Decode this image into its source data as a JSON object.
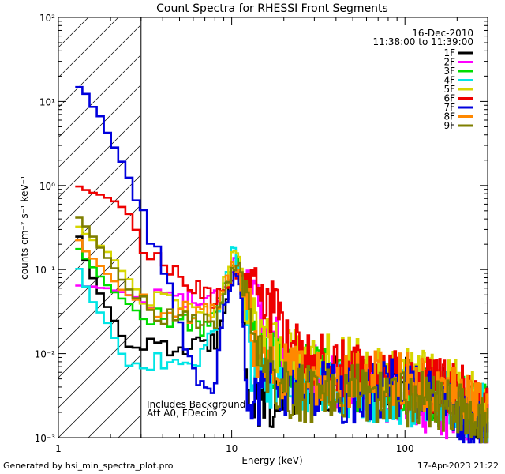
{
  "chart_data": {
    "type": "line",
    "title": "Count Spectra for RHESSI Front Segments",
    "xlabel": "Energy (keV)",
    "ylabel": "counts cm⁻² s⁻¹ keV⁻¹",
    "xscale": "log",
    "yscale": "log",
    "xlim": [
      1,
      300
    ],
    "ylim": [
      0.001,
      100
    ],
    "x_ticks": [
      1,
      10,
      100
    ],
    "x_tick_labels": [
      "1",
      "10",
      "100"
    ],
    "y_ticks": [
      0.001,
      0.01,
      0.1,
      1,
      10,
      100
    ],
    "y_tick_labels": [
      "10⁻³",
      "10⁻²",
      "10⁻¹",
      "10⁰",
      "10¹",
      "10²"
    ],
    "attenuator_cutoff_keV": 3,
    "date": "16-Dec-2010",
    "time_range": "11:38:00 to 11:39:00",
    "annotation": [
      "Includes Background",
      "Att A0, FDecim 2"
    ],
    "legend_position": "top-right",
    "series": [
      {
        "name": "1F",
        "color": "#000000"
      },
      {
        "name": "2F",
        "color": "#ff00ff"
      },
      {
        "name": "3F",
        "color": "#00dd00"
      },
      {
        "name": "4F",
        "color": "#00e5e5"
      },
      {
        "name": "5F",
        "color": "#d6d600"
      },
      {
        "name": "6F",
        "color": "#ee0000"
      },
      {
        "name": "7F",
        "color": "#0000dd"
      },
      {
        "name": "8F",
        "color": "#ff8800"
      },
      {
        "name": "9F",
        "color": "#7f7f00"
      }
    ],
    "anchors": {
      "1F": [
        [
          1.25,
          0.34
        ],
        [
          1.5,
          0.1
        ],
        [
          2,
          0.03
        ],
        [
          2.5,
          0.012
        ],
        [
          3,
          0.012
        ],
        [
          4,
          0.011
        ],
        [
          6,
          0.012
        ],
        [
          8,
          0.014
        ],
        [
          9.5,
          0.06
        ],
        [
          10.5,
          0.11
        ],
        [
          11.5,
          0.05
        ],
        [
          12.5,
          0.003
        ],
        [
          15,
          0.002
        ],
        [
          20,
          0.004
        ],
        [
          30,
          0.004
        ],
        [
          50,
          0.005
        ],
        [
          80,
          0.004
        ],
        [
          120,
          0.004
        ],
        [
          200,
          0.003
        ],
        [
          290,
          0.0015
        ]
      ],
      "2F": [
        [
          1.25,
          0.065
        ],
        [
          2,
          0.06
        ],
        [
          2.5,
          0.05
        ],
        [
          3,
          0.045
        ],
        [
          5,
          0.05
        ],
        [
          7,
          0.04
        ],
        [
          9,
          0.06
        ],
        [
          10.5,
          0.13
        ],
        [
          12,
          0.06
        ],
        [
          14,
          0.03
        ],
        [
          20,
          0.01
        ],
        [
          30,
          0.006
        ],
        [
          60,
          0.004
        ],
        [
          100,
          0.003
        ],
        [
          200,
          0.002
        ],
        [
          290,
          0.0015
        ]
      ],
      "3F": [
        [
          1.25,
          0.2
        ],
        [
          1.5,
          0.12
        ],
        [
          2,
          0.06
        ],
        [
          2.5,
          0.04
        ],
        [
          3,
          0.03
        ],
        [
          5,
          0.025
        ],
        [
          7,
          0.02
        ],
        [
          9,
          0.05
        ],
        [
          10.5,
          0.15
        ],
        [
          12,
          0.05
        ],
        [
          14,
          0.01
        ],
        [
          20,
          0.007
        ],
        [
          40,
          0.005
        ],
        [
          80,
          0.004
        ],
        [
          150,
          0.003
        ],
        [
          290,
          0.002
        ]
      ],
      "4F": [
        [
          1.25,
          0.13
        ],
        [
          1.5,
          0.05
        ],
        [
          2,
          0.02
        ],
        [
          2.5,
          0.007
        ],
        [
          3,
          0.008
        ],
        [
          4,
          0.008
        ],
        [
          5.5,
          0.007
        ],
        [
          7,
          0.01
        ],
        [
          9,
          0.05
        ],
        [
          10.3,
          0.2
        ],
        [
          11.5,
          0.06
        ],
        [
          13,
          0.006
        ],
        [
          20,
          0.004
        ],
        [
          40,
          0.004
        ],
        [
          80,
          0.003
        ],
        [
          150,
          0.003
        ],
        [
          290,
          0.002
        ]
      ],
      "5F": [
        [
          1.25,
          0.35
        ],
        [
          1.5,
          0.25
        ],
        [
          2,
          0.15
        ],
        [
          2.5,
          0.08
        ],
        [
          3,
          0.05
        ],
        [
          4,
          0.04
        ],
        [
          6,
          0.03
        ],
        [
          8,
          0.03
        ],
        [
          10,
          0.12
        ],
        [
          11,
          0.15
        ],
        [
          12,
          0.05
        ],
        [
          14,
          0.015
        ],
        [
          20,
          0.01
        ],
        [
          30,
          0.008
        ],
        [
          50,
          0.007
        ],
        [
          80,
          0.006
        ],
        [
          120,
          0.005
        ],
        [
          200,
          0.004
        ],
        [
          290,
          0.002
        ]
      ],
      "6F": [
        [
          1.25,
          1
        ],
        [
          1.5,
          0.85
        ],
        [
          2,
          0.7
        ],
        [
          2.5,
          0.5
        ],
        [
          3,
          0.22
        ],
        [
          4,
          0.1
        ],
        [
          5,
          0.08
        ],
        [
          6,
          0.06
        ],
        [
          7,
          0.05
        ],
        [
          8,
          0.04
        ],
        [
          9,
          0.06
        ],
        [
          10.5,
          0.1
        ],
        [
          12,
          0.08
        ],
        [
          14,
          0.06
        ],
        [
          16,
          0.04
        ],
        [
          18,
          0.04
        ],
        [
          20,
          0.012
        ],
        [
          30,
          0.008
        ],
        [
          50,
          0.006
        ],
        [
          90,
          0.005
        ],
        [
          150,
          0.004
        ],
        [
          250,
          0.003
        ],
        [
          290,
          0.002
        ]
      ],
      "7F": [
        [
          1.25,
          15
        ],
        [
          1.4,
          14
        ],
        [
          1.5,
          10
        ],
        [
          1.8,
          6
        ],
        [
          2,
          3.5
        ],
        [
          2.5,
          1.4
        ],
        [
          3,
          0.45
        ],
        [
          3.5,
          0.2
        ],
        [
          4,
          0.1
        ],
        [
          5,
          0.025
        ],
        [
          6,
          0.006
        ],
        [
          7,
          0.003
        ],
        [
          8,
          0.005
        ],
        [
          9,
          0.03
        ],
        [
          10.5,
          0.09
        ],
        [
          11.5,
          0.05
        ],
        [
          12,
          0.005
        ],
        [
          14,
          0.003
        ],
        [
          20,
          0.004
        ],
        [
          30,
          0.004
        ],
        [
          50,
          0.003
        ],
        [
          80,
          0.004
        ],
        [
          130,
          0.003
        ],
        [
          200,
          0.002
        ],
        [
          290,
          0.0015
        ]
      ],
      "8F": [
        [
          1.25,
          0.25
        ],
        [
          1.5,
          0.15
        ],
        [
          2,
          0.08
        ],
        [
          2.5,
          0.05
        ],
        [
          3,
          0.04
        ],
        [
          4,
          0.035
        ],
        [
          6,
          0.03
        ],
        [
          8,
          0.03
        ],
        [
          10.5,
          0.14
        ],
        [
          12,
          0.05
        ],
        [
          14,
          0.01
        ],
        [
          20,
          0.006
        ],
        [
          40,
          0.005
        ],
        [
          80,
          0.005
        ],
        [
          150,
          0.004
        ],
        [
          290,
          0.002
        ]
      ],
      "9F": [
        [
          1.25,
          0.45
        ],
        [
          1.5,
          0.3
        ],
        [
          2,
          0.12
        ],
        [
          2.5,
          0.06
        ],
        [
          3,
          0.04
        ],
        [
          4,
          0.03
        ],
        [
          6,
          0.025
        ],
        [
          8,
          0.02
        ],
        [
          10,
          0.08
        ],
        [
          11,
          0.12
        ],
        [
          12,
          0.04
        ],
        [
          14,
          0.008
        ],
        [
          20,
          0.004
        ],
        [
          30,
          0.003
        ],
        [
          50,
          0.004
        ],
        [
          80,
          0.003
        ],
        [
          120,
          0.003
        ],
        [
          200,
          0.002
        ],
        [
          290,
          0.0015
        ]
      ]
    }
  },
  "footer": {
    "left": "Generated by hsi_min_spectra_plot.pro",
    "right": "17-Apr-2023 21:22"
  }
}
